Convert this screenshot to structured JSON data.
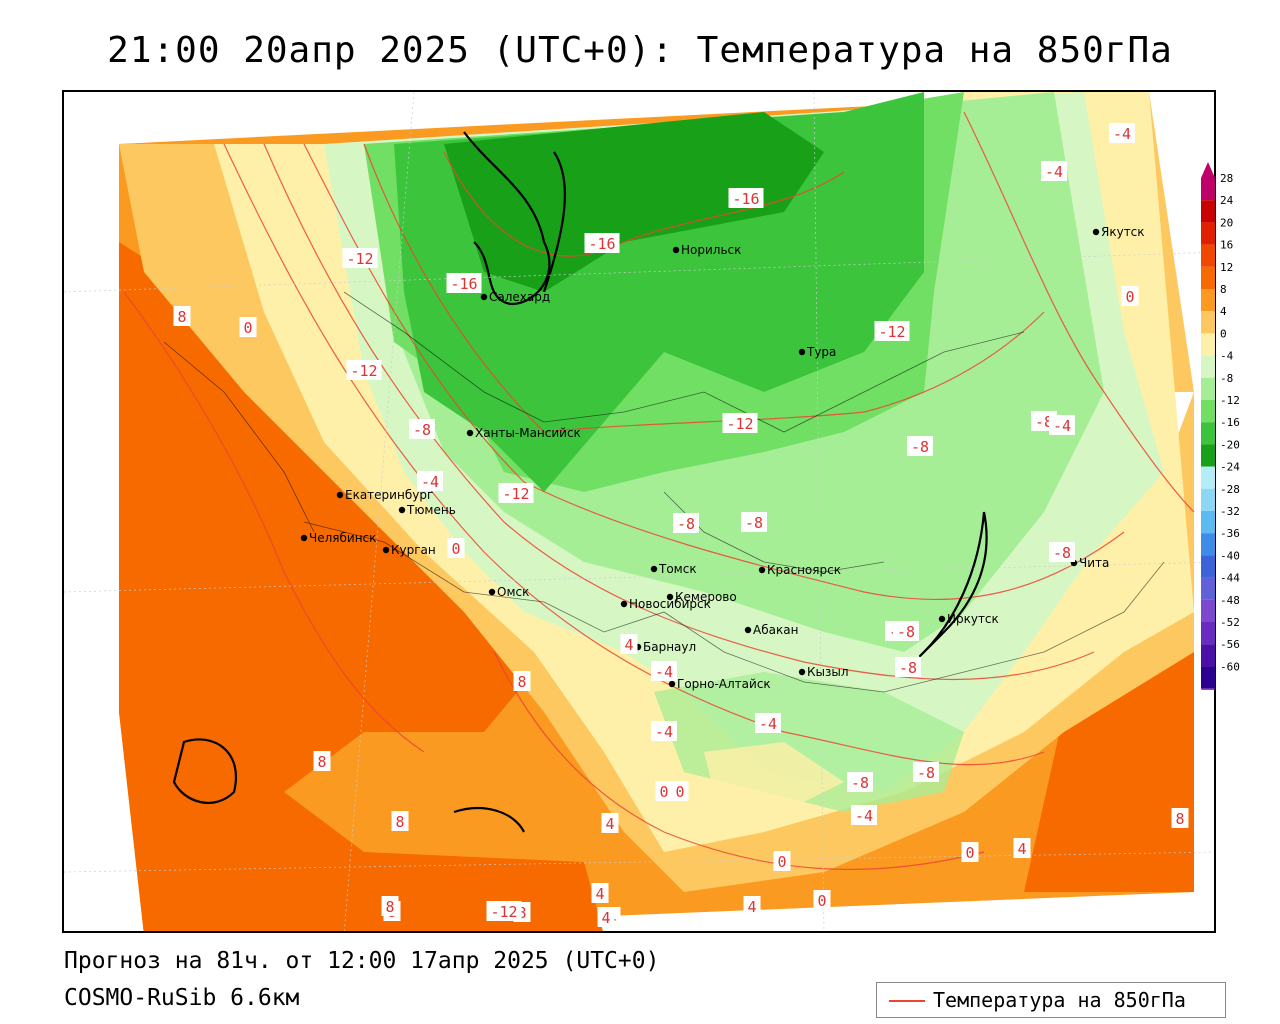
{
  "header": {
    "title": "21:00 20апр 2025 (UTC+0): Температура на 850гПа"
  },
  "footer": {
    "forecast": "Прогноз на 81ч. от 12:00 17апр 2025 (UTC+0)",
    "model": "COSMO-RuSib 6.6км"
  },
  "legend": {
    "label": "Температура на 850гПа",
    "line_color": "#ee4433"
  },
  "color_scale": {
    "ticks": [
      "28",
      "24",
      "20",
      "16",
      "12",
      "8",
      "4",
      "0",
      "-4",
      "-8",
      "-12",
      "-16",
      "-20",
      "-24",
      "-28",
      "-32",
      "-36",
      "-40",
      "-44",
      "-48",
      "-52",
      "-56",
      "-60"
    ],
    "colors": [
      "#c0006a",
      "#c80000",
      "#e02000",
      "#f04800",
      "#f66a00",
      "#fb9a20",
      "#fdc860",
      "#fef0a8",
      "#d6f7c4",
      "#a6ee96",
      "#70df64",
      "#3cc43c",
      "#18a018",
      "#b4ecf8",
      "#8cd8f4",
      "#5cbaf0",
      "#3c8ce8",
      "#3c64d8",
      "#6060d8",
      "#7c48d0",
      "#6a2cc0",
      "#4a10a8",
      "#2c0090"
    ]
  },
  "cities": [
    {
      "name": "Салехард"
    },
    {
      "name": "Норильск"
    },
    {
      "name": "Якутск"
    },
    {
      "name": "Тура"
    },
    {
      "name": "Ханты-Мансийск"
    },
    {
      "name": "Екатеринбург"
    },
    {
      "name": "Тюмень"
    },
    {
      "name": "Челябинск"
    },
    {
      "name": "Курган"
    },
    {
      "name": "Омск"
    },
    {
      "name": "Томск"
    },
    {
      "name": "Красноярск"
    },
    {
      "name": "Новосибирск"
    },
    {
      "name": "Кемерово"
    },
    {
      "name": "Барнаул"
    },
    {
      "name": "Абакан"
    },
    {
      "name": "Иркутск"
    },
    {
      "name": "Чита"
    },
    {
      "name": "Кызыл"
    },
    {
      "name": "Горно-Алтайск"
    }
  ],
  "isotherm_labels": [
    "-4",
    "-4",
    "0",
    "-16",
    "-16",
    "-16",
    "-12",
    "-12",
    "-12",
    "-12",
    "-12",
    "8",
    "0",
    "-8",
    "-8",
    "-8",
    "-8",
    "-4",
    "0",
    "-8",
    "-8",
    "-4",
    "-8",
    "-8",
    "-8",
    "4",
    "4",
    "8",
    "8",
    "8",
    "8",
    "-4",
    "-4",
    "-4",
    "0",
    "0",
    "-8",
    "-4",
    "-8",
    "8",
    "4",
    "0",
    "4",
    "0",
    "8",
    "8",
    "4",
    "4",
    "0",
    "4",
    "-12"
  ]
}
